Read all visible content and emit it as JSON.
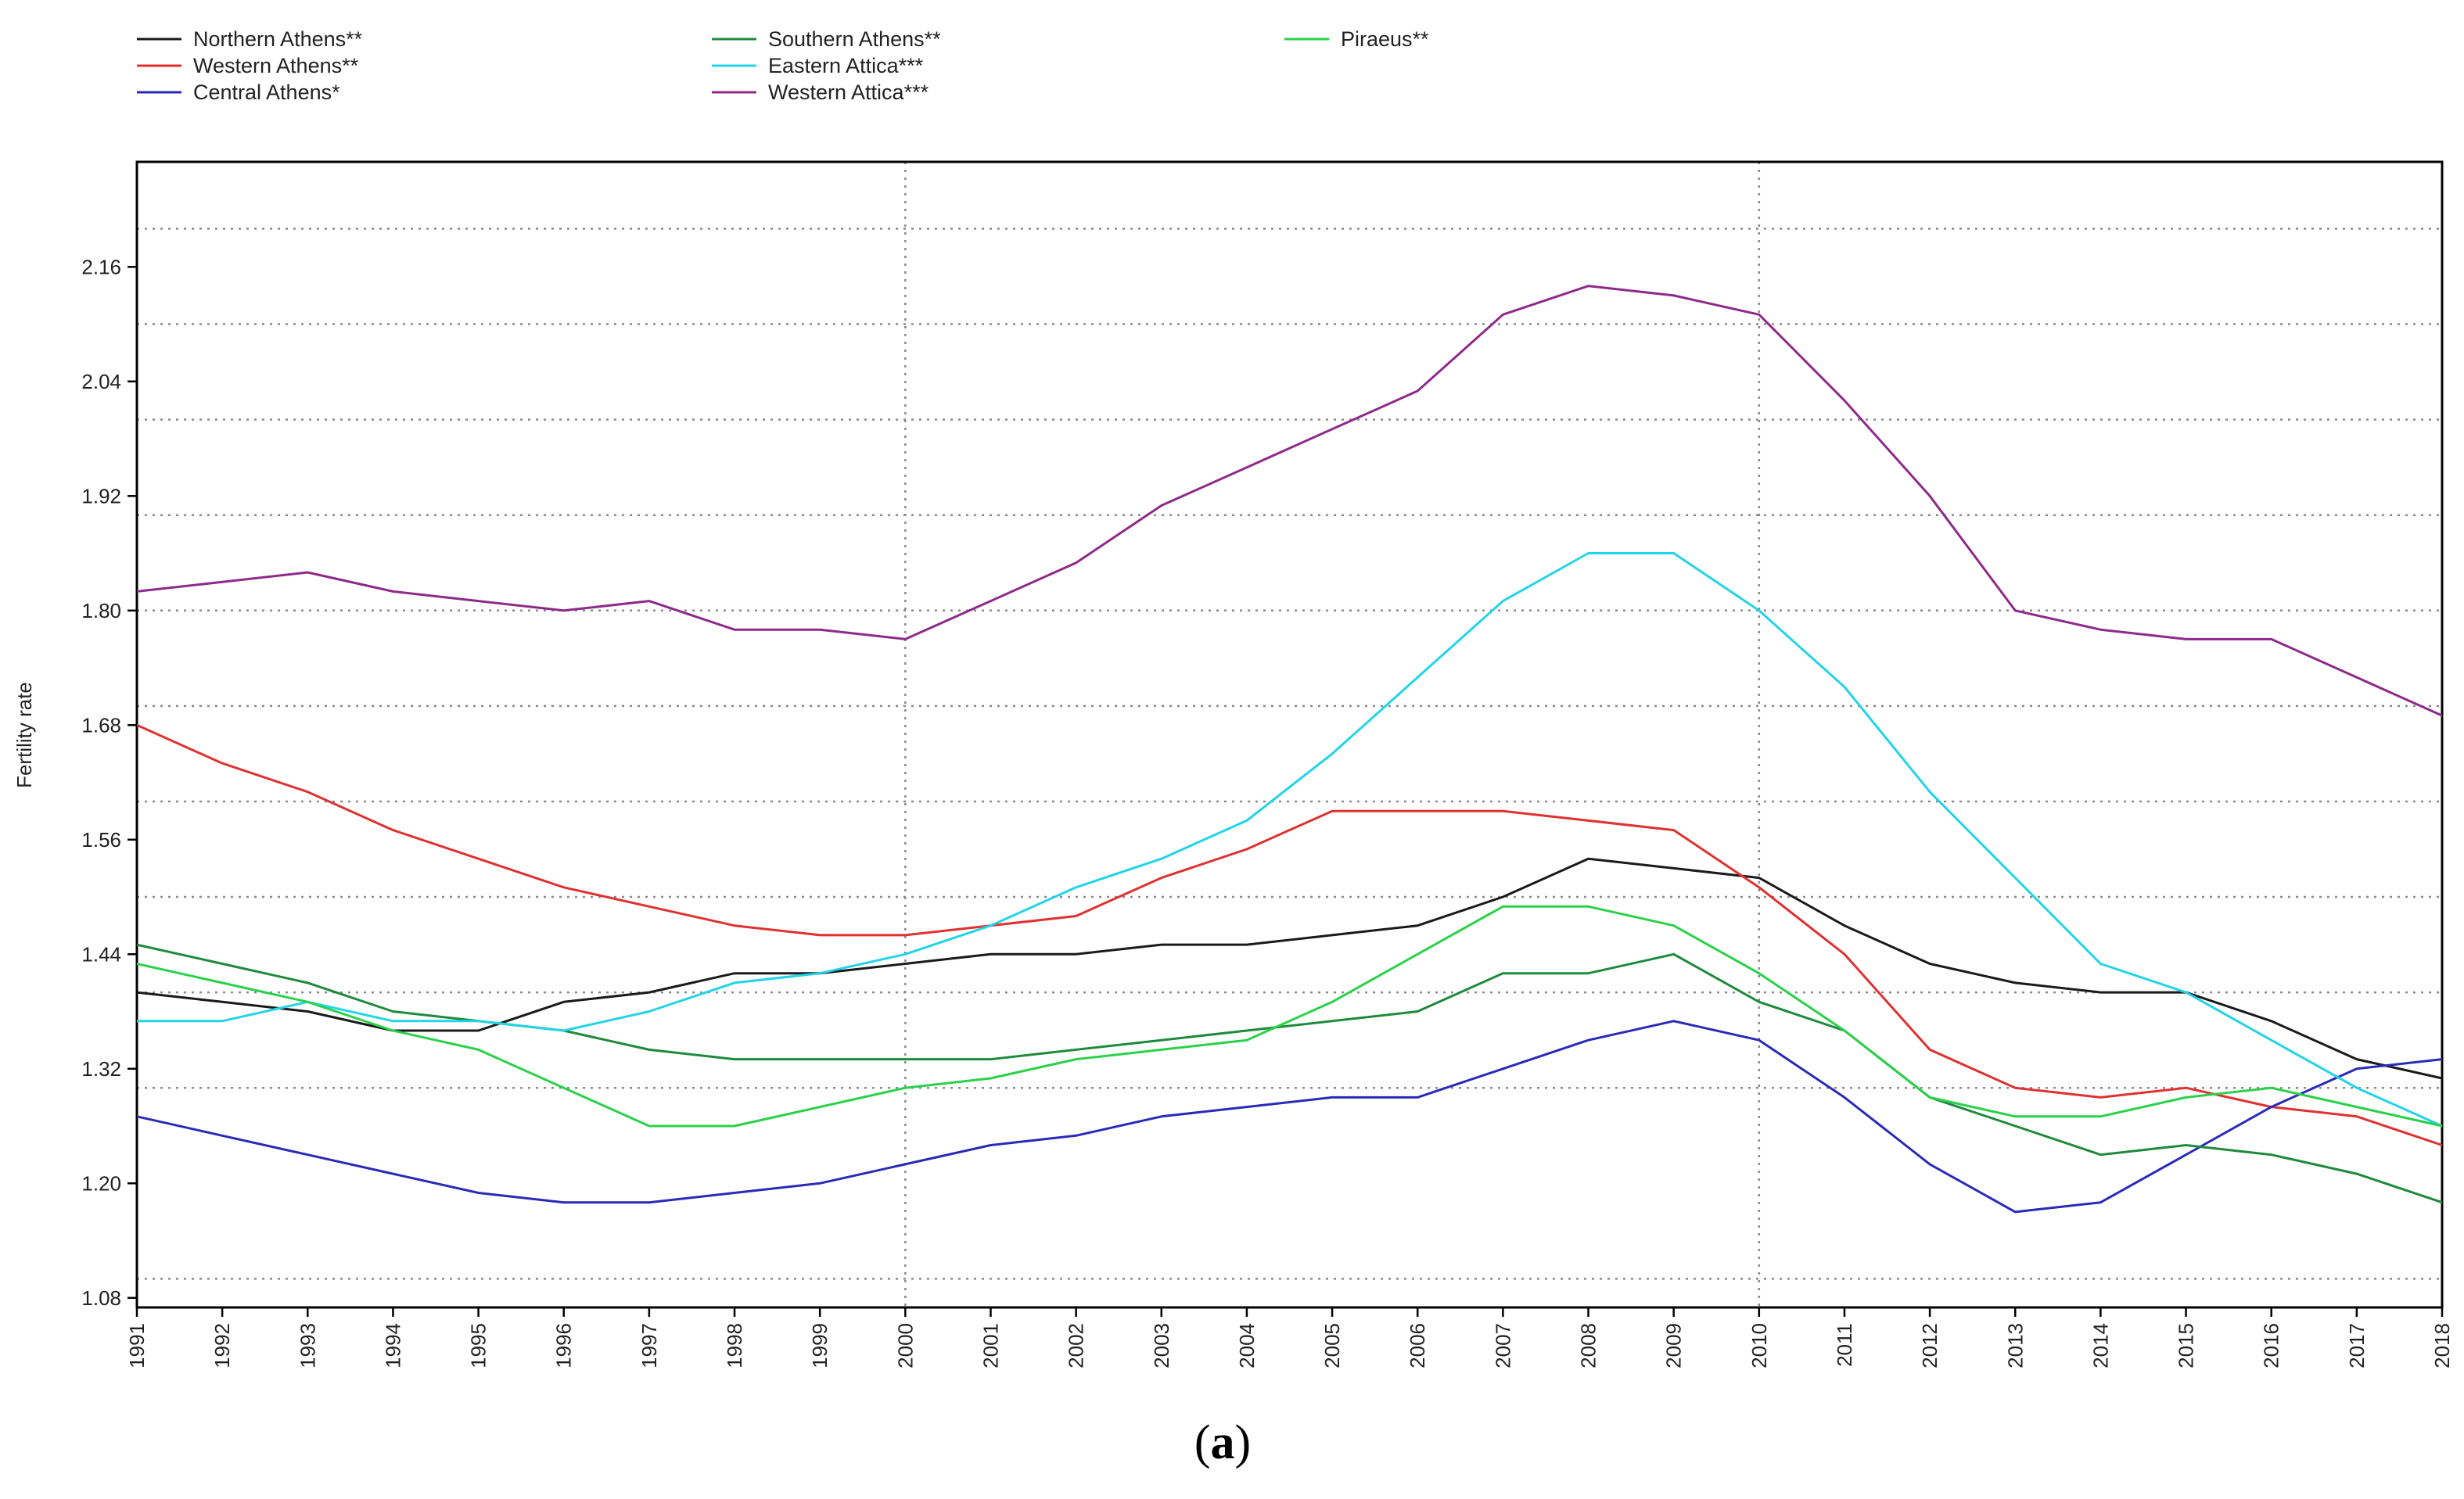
{
  "chart_data": {
    "type": "line",
    "title": "",
    "xlabel": "",
    "ylabel": "Fertility rate",
    "caption": {
      "open": "(",
      "label": "a",
      "close": ")"
    },
    "x": [
      1991,
      1992,
      1993,
      1994,
      1995,
      1996,
      1997,
      1998,
      1999,
      2000,
      2001,
      2002,
      2003,
      2004,
      2005,
      2006,
      2007,
      2008,
      2009,
      2010,
      2011,
      2012,
      2013,
      2014,
      2015,
      2016,
      2017,
      2018
    ],
    "x_tick_labels": [
      "1991",
      "1992",
      "1993",
      "1994",
      "1995",
      "1996",
      "1997",
      "1998",
      "1999",
      "2000",
      "2001",
      "2002",
      "2003",
      "2004",
      "2005",
      "2006",
      "2007",
      "2008",
      "2009",
      "2010",
      "2011",
      "2012",
      "2013",
      "2014",
      "2015",
      "2016",
      "2017",
      "2018"
    ],
    "y_ticks": [
      1.08,
      1.2,
      1.32,
      1.44,
      1.56,
      1.68,
      1.8,
      1.92,
      2.04,
      2.16
    ],
    "y_tick_labels": [
      "1.08",
      "1.20",
      "1.32",
      "1.44",
      "1.56",
      "1.68",
      "1.80",
      "1.92",
      "2.04",
      "2.16"
    ],
    "y_dotted_grid": [
      1.1,
      1.3,
      1.4,
      1.5,
      1.6,
      1.7,
      1.8,
      1.9,
      2.0,
      2.1,
      2.2
    ],
    "x_dotted_grid": [
      2000,
      2010
    ],
    "ylim": [
      1.07,
      2.27
    ],
    "xlim": [
      1991,
      2018
    ],
    "grid": true,
    "legend_position": "top-left",
    "series": [
      {
        "name": "Northern Athens**",
        "color": "#1a1a1a",
        "values": [
          1.4,
          1.39,
          1.38,
          1.36,
          1.36,
          1.39,
          1.4,
          1.42,
          1.42,
          1.43,
          1.44,
          1.44,
          1.45,
          1.45,
          1.46,
          1.47,
          1.5,
          1.54,
          1.53,
          1.52,
          1.47,
          1.43,
          1.41,
          1.4,
          1.4,
          1.37,
          1.33,
          1.31
        ]
      },
      {
        "name": "Western Athens**",
        "color": "#e03131",
        "values": [
          1.68,
          1.64,
          1.61,
          1.57,
          1.54,
          1.51,
          1.49,
          1.47,
          1.46,
          1.46,
          1.47,
          1.48,
          1.52,
          1.55,
          1.59,
          1.59,
          1.59,
          1.58,
          1.57,
          1.51,
          1.44,
          1.34,
          1.3,
          1.29,
          1.3,
          1.28,
          1.27,
          1.24
        ]
      },
      {
        "name": "Central Athens*",
        "color": "#2a2ab8",
        "values": [
          1.27,
          1.25,
          1.23,
          1.21,
          1.19,
          1.18,
          1.18,
          1.19,
          1.2,
          1.22,
          1.24,
          1.25,
          1.27,
          1.28,
          1.29,
          1.29,
          1.32,
          1.35,
          1.37,
          1.35,
          1.29,
          1.22,
          1.17,
          1.18,
          1.23,
          1.28,
          1.32,
          1.33
        ]
      },
      {
        "name": "Southern Athens**",
        "color": "#1e8a3c",
        "values": [
          1.45,
          1.43,
          1.41,
          1.38,
          1.37,
          1.36,
          1.34,
          1.33,
          1.33,
          1.33,
          1.33,
          1.34,
          1.35,
          1.36,
          1.37,
          1.38,
          1.42,
          1.42,
          1.44,
          1.39,
          1.36,
          1.29,
          1.26,
          1.23,
          1.24,
          1.23,
          1.21,
          1.18
        ]
      },
      {
        "name": "Eastern Attica***",
        "color": "#22d4e8",
        "values": [
          1.37,
          1.37,
          1.39,
          1.37,
          1.37,
          1.36,
          1.38,
          1.41,
          1.42,
          1.44,
          1.47,
          1.51,
          1.54,
          1.58,
          1.65,
          1.73,
          1.81,
          1.86,
          1.86,
          1.8,
          1.72,
          1.61,
          1.52,
          1.43,
          1.4,
          1.35,
          1.3,
          1.26
        ]
      },
      {
        "name": "Western Attica***",
        "color": "#8e2a8a",
        "values": [
          1.82,
          1.83,
          1.84,
          1.82,
          1.81,
          1.8,
          1.81,
          1.78,
          1.78,
          1.77,
          1.81,
          1.85,
          1.91,
          1.95,
          1.99,
          2.03,
          2.11,
          2.14,
          2.13,
          2.11,
          2.02,
          1.92,
          1.8,
          1.78,
          1.77,
          1.77,
          1.73,
          1.69
        ]
      },
      {
        "name": "Piraeus**",
        "color": "#2bd14a",
        "values": [
          1.43,
          1.41,
          1.39,
          1.36,
          1.34,
          1.3,
          1.26,
          1.26,
          1.28,
          1.3,
          1.31,
          1.33,
          1.34,
          1.35,
          1.39,
          1.44,
          1.49,
          1.49,
          1.47,
          1.42,
          1.36,
          1.29,
          1.27,
          1.27,
          1.29,
          1.3,
          1.28,
          1.26
        ]
      }
    ]
  }
}
